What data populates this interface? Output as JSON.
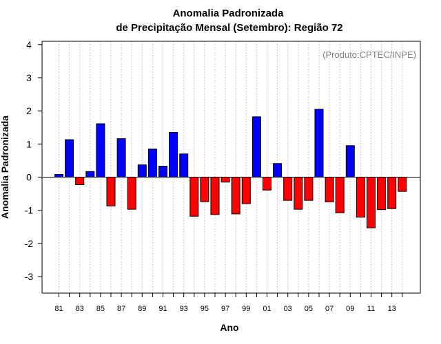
{
  "chart_data": {
    "type": "bar",
    "title": "Anomalia Padronizada",
    "subtitle": "de Precipitação Mensal (Setembro): Região 72",
    "xlabel": "Ano",
    "ylabel": "Anomalia Padronizada",
    "credit": "(Produto:CPTEC/INPE)",
    "ylim": [
      -3.5,
      4.1
    ],
    "yticks": [
      -3,
      -2,
      -1,
      0,
      1,
      2,
      3,
      4
    ],
    "grid": "vertical-dotted",
    "positive_color": "#0000ff",
    "negative_color": "#ff0000",
    "categories": [
      "81",
      "82",
      "83",
      "84",
      "85",
      "86",
      "87",
      "88",
      "89",
      "90",
      "91",
      "92",
      "93",
      "94",
      "95",
      "96",
      "97",
      "98",
      "99",
      "00",
      "01",
      "02",
      "03",
      "04",
      "05",
      "06",
      "07",
      "08",
      "09",
      "10",
      "11",
      "12",
      "13",
      "14"
    ],
    "xtick_labels": [
      "81",
      "83",
      "85",
      "87",
      "89",
      "91",
      "93",
      "95",
      "97",
      "99",
      "01",
      "03",
      "05",
      "07",
      "09",
      "11",
      "13"
    ],
    "values": [
      0.08,
      1.13,
      -0.23,
      0.17,
      1.61,
      -0.87,
      1.16,
      -0.97,
      0.37,
      0.85,
      0.33,
      1.35,
      0.7,
      -1.18,
      -0.74,
      -1.13,
      -0.15,
      -1.11,
      -0.8,
      1.82,
      -0.39,
      0.41,
      -0.7,
      -0.97,
      -0.7,
      2.05,
      -0.75,
      -1.08,
      0.95,
      -1.21,
      -1.53,
      -0.98,
      -0.95,
      -0.43
    ]
  }
}
